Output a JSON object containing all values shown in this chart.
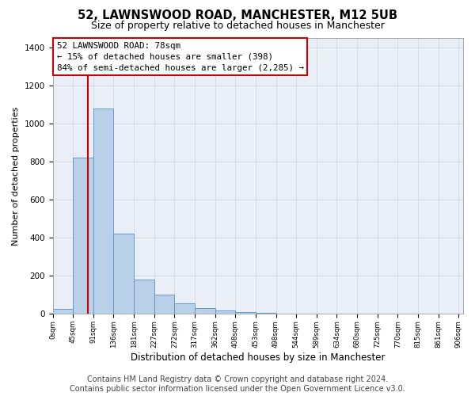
{
  "title1": "52, LAWNSWOOD ROAD, MANCHESTER, M12 5UB",
  "title2": "Size of property relative to detached houses in Manchester",
  "xlabel": "Distribution of detached houses by size in Manchester",
  "ylabel": "Number of detached properties",
  "property_size": 78,
  "bin_width": 45,
  "bin_starts": [
    0,
    45,
    90,
    135,
    180,
    225,
    270,
    315,
    360,
    405,
    450,
    495,
    540,
    585,
    630,
    675,
    720,
    765,
    810,
    855
  ],
  "bar_heights": [
    25,
    820,
    1080,
    420,
    180,
    100,
    55,
    30,
    20,
    10,
    5,
    2,
    1,
    1,
    0,
    0,
    0,
    0,
    0,
    0
  ],
  "bar_color": "#b8d0e8",
  "bar_edge_color": "#6699cc",
  "vline_color": "#cc0000",
  "annotation_text": "52 LAWNSWOOD ROAD: 78sqm\n← 15% of detached houses are smaller (398)\n84% of semi-detached houses are larger (2,285) →",
  "annotation_box_color": "#ffffff",
  "annotation_border_color": "#cc0000",
  "ylim": [
    0,
    1450
  ],
  "xlim": [
    0,
    910
  ],
  "yticks": [
    0,
    200,
    400,
    600,
    800,
    1000,
    1200,
    1400
  ],
  "xtick_labels": [
    "0sqm",
    "45sqm",
    "91sqm",
    "136sqm",
    "181sqm",
    "227sqm",
    "272sqm",
    "317sqm",
    "362sqm",
    "408sqm",
    "453sqm",
    "498sqm",
    "544sqm",
    "589sqm",
    "634sqm",
    "680sqm",
    "725sqm",
    "770sqm",
    "815sqm",
    "861sqm",
    "906sqm"
  ],
  "grid_color": "#d0d8e8",
  "background_color": "#eaeff7",
  "footer_text": "Contains HM Land Registry data © Crown copyright and database right 2024.\nContains public sector information licensed under the Open Government Licence v3.0.",
  "title1_fontsize": 10.5,
  "title2_fontsize": 9,
  "xlabel_fontsize": 8.5,
  "ylabel_fontsize": 8,
  "annotation_fontsize": 7.8,
  "footer_fontsize": 7
}
